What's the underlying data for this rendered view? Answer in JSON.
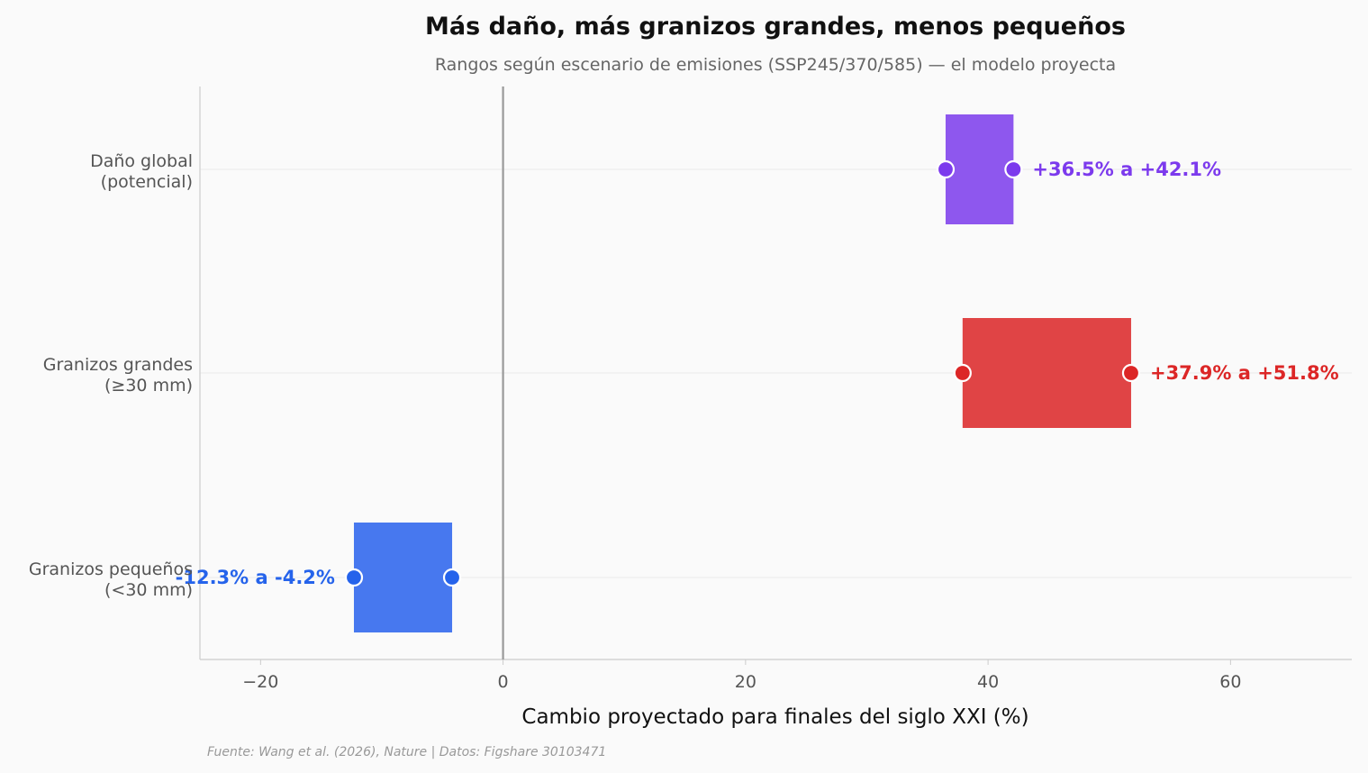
{
  "chart_data": {
    "type": "bar",
    "orientation": "horizontal",
    "variant": "range",
    "title": "Más daño, más granizos grandes, menos pequeños",
    "subtitle": "Rangos según escenario de emisiones (SSP245/370/585) — el modelo proyecta",
    "xlabel": "Cambio proyectado para finales del siglo XXI (%)",
    "ylabel": "",
    "xlim": [
      -25,
      70
    ],
    "xticks": [
      -20,
      0,
      20,
      40,
      60
    ],
    "xtick_labels": [
      "−20",
      "0",
      "20",
      "40",
      "60"
    ],
    "reference_line": 0,
    "grid": "horizontal lines at categories",
    "categories": [
      {
        "label_lines": [
          "Daño global",
          "(potencial)"
        ],
        "low": 36.5,
        "high": 42.1,
        "label": "+36.5% a +42.1%",
        "bar_color": "#8e57ee",
        "dot_color": "#7c3aed",
        "text_color": "#7c3aed",
        "label_side": "right"
      },
      {
        "label_lines": [
          "Granizos grandes",
          "(≥30 mm)"
        ],
        "low": 37.9,
        "high": 51.8,
        "label": "+37.9% a +51.8%",
        "bar_color": "#e04445",
        "dot_color": "#dc2626",
        "text_color": "#dc2626",
        "label_side": "right"
      },
      {
        "label_lines": [
          "Granizos pequeños",
          "(<30 mm)"
        ],
        "low": -12.3,
        "high": -4.2,
        "label": "-12.3% a -4.2%",
        "bar_color": "#4778ef",
        "dot_color": "#2563eb",
        "text_color": "#2563eb",
        "label_side": "left"
      }
    ],
    "source": "Fuente: Wang et al. (2026), Nature | Datos: Figshare 30103471"
  },
  "colors": {
    "background": "#fafafa",
    "axis": "#cccccc",
    "zero_line": "#999999",
    "grid": "#ebebeb"
  }
}
